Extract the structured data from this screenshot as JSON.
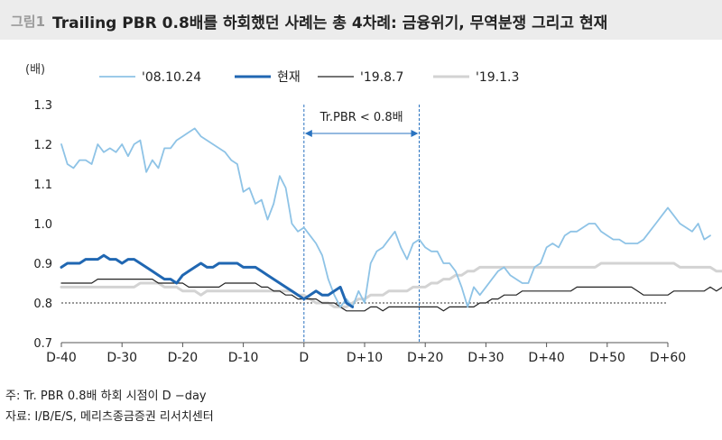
{
  "header": {
    "fig_no": "그림1",
    "title": "Trailing PBR 0.8배를 하회했던 사례는 총 4차례: 금융위기, 무역분쟁 그리고 현재"
  },
  "footer": {
    "note": "주: Tr. PBR 0.8배 하회 시점이 D −day",
    "source": "자료: I/B/E/S, 메리츠종금증권 리서치센터"
  },
  "chart_data": {
    "type": "line",
    "ylabel": "(배)",
    "xlabel": "",
    "xlim": [
      -40,
      60
    ],
    "ylim": [
      0.7,
      1.3
    ],
    "x_ticks": [
      -40,
      -30,
      -20,
      -10,
      0,
      10,
      20,
      30,
      40,
      50,
      60
    ],
    "x_tick_labels": [
      "D-40",
      "D-30",
      "D-20",
      "D-10",
      "D",
      "D+10",
      "D+20",
      "D+30",
      "D+40",
      "D+50",
      "D+60"
    ],
    "y_ticks": [
      0.7,
      0.8,
      0.9,
      1.0,
      1.1,
      1.2,
      1.3
    ],
    "y_tick_labels": [
      "0.7",
      "0.8",
      "0.9",
      "1.0",
      "1.1",
      "1.2",
      "1.3"
    ],
    "grid": false,
    "legend_position": "top",
    "reference_line": {
      "y": 0.8,
      "style": "dotted"
    },
    "annotation": {
      "text": "Tr.PBR < 0.8배",
      "x_start": 0,
      "x_end": 19
    },
    "series": [
      {
        "name": "'08.10.24",
        "color": "#8ec3e6",
        "width": 1.8,
        "x_start": -40,
        "values": [
          1.2,
          1.15,
          1.14,
          1.16,
          1.16,
          1.15,
          1.2,
          1.18,
          1.19,
          1.18,
          1.2,
          1.17,
          1.2,
          1.21,
          1.13,
          1.16,
          1.14,
          1.19,
          1.19,
          1.21,
          1.22,
          1.23,
          1.24,
          1.22,
          1.21,
          1.2,
          1.19,
          1.18,
          1.16,
          1.15,
          1.08,
          1.09,
          1.05,
          1.06,
          1.01,
          1.05,
          1.12,
          1.09,
          1.0,
          0.98,
          0.99,
          0.97,
          0.95,
          0.92,
          0.86,
          0.82,
          0.79,
          0.81,
          0.79,
          0.83,
          0.8,
          0.9,
          0.93,
          0.94,
          0.96,
          0.98,
          0.94,
          0.91,
          0.95,
          0.96,
          0.94,
          0.93,
          0.93,
          0.9,
          0.9,
          0.88,
          0.84,
          0.79,
          0.84,
          0.82,
          0.84,
          0.86,
          0.88,
          0.89,
          0.87,
          0.86,
          0.85,
          0.85,
          0.89,
          0.9,
          0.94,
          0.95,
          0.94,
          0.97,
          0.98,
          0.98,
          0.99,
          1.0,
          1.0,
          0.98,
          0.97,
          0.96,
          0.96,
          0.95,
          0.95,
          0.95,
          0.96,
          0.98,
          1.0,
          1.02,
          1.04,
          1.02,
          1.0,
          0.99,
          0.98,
          1.0,
          0.96,
          0.97
        ]
      },
      {
        "name": "현재",
        "color": "#2067b2",
        "width": 3,
        "x_start": -40,
        "values": [
          0.89,
          0.9,
          0.9,
          0.9,
          0.91,
          0.91,
          0.91,
          0.92,
          0.91,
          0.91,
          0.9,
          0.91,
          0.91,
          0.9,
          0.89,
          0.88,
          0.87,
          0.86,
          0.86,
          0.85,
          0.87,
          0.88,
          0.89,
          0.9,
          0.89,
          0.89,
          0.9,
          0.9,
          0.9,
          0.9,
          0.89,
          0.89,
          0.89,
          0.88,
          0.87,
          0.86,
          0.85,
          0.84,
          0.83,
          0.82,
          0.81,
          0.82,
          0.83,
          0.82,
          0.82,
          0.83,
          0.84,
          0.8,
          0.79
        ]
      },
      {
        "name": "'19.8.7",
        "color": "#222222",
        "width": 1.2,
        "x_start": -40,
        "values": [
          0.85,
          0.85,
          0.85,
          0.85,
          0.85,
          0.85,
          0.86,
          0.86,
          0.86,
          0.86,
          0.86,
          0.86,
          0.86,
          0.86,
          0.86,
          0.86,
          0.85,
          0.85,
          0.85,
          0.85,
          0.85,
          0.84,
          0.84,
          0.84,
          0.84,
          0.84,
          0.84,
          0.85,
          0.85,
          0.85,
          0.85,
          0.85,
          0.85,
          0.84,
          0.84,
          0.83,
          0.83,
          0.82,
          0.82,
          0.81,
          0.81,
          0.81,
          0.81,
          0.8,
          0.8,
          0.8,
          0.79,
          0.78,
          0.78,
          0.78,
          0.78,
          0.79,
          0.79,
          0.78,
          0.79,
          0.79,
          0.79,
          0.79,
          0.79,
          0.79,
          0.79,
          0.79,
          0.79,
          0.78,
          0.79,
          0.79,
          0.79,
          0.79,
          0.79,
          0.8,
          0.8,
          0.81,
          0.81,
          0.82,
          0.82,
          0.82,
          0.83,
          0.83,
          0.83,
          0.83,
          0.83,
          0.83,
          0.83,
          0.83,
          0.83,
          0.84,
          0.84,
          0.84,
          0.84,
          0.84,
          0.84,
          0.84,
          0.84,
          0.84,
          0.84,
          0.83,
          0.82,
          0.82,
          0.82,
          0.82,
          0.82,
          0.83,
          0.83,
          0.83,
          0.83,
          0.83,
          0.83,
          0.84,
          0.83,
          0.84,
          0.84,
          0.84,
          0.84,
          0.84,
          0.84,
          0.84,
          0.84,
          0.84,
          0.84,
          0.84,
          0.84
        ]
      },
      {
        "name": "'19.1.3",
        "color": "#d3d3d3",
        "width": 3,
        "x_start": -40,
        "values": [
          0.84,
          0.84,
          0.84,
          0.84,
          0.84,
          0.84,
          0.84,
          0.84,
          0.84,
          0.84,
          0.84,
          0.84,
          0.84,
          0.85,
          0.85,
          0.85,
          0.85,
          0.84,
          0.84,
          0.84,
          0.83,
          0.83,
          0.83,
          0.82,
          0.83,
          0.83,
          0.83,
          0.83,
          0.83,
          0.83,
          0.83,
          0.83,
          0.83,
          0.83,
          0.83,
          0.83,
          0.83,
          0.83,
          0.83,
          0.82,
          0.82,
          0.81,
          0.8,
          0.8,
          0.8,
          0.79,
          0.79,
          0.79,
          0.8,
          0.81,
          0.81,
          0.82,
          0.82,
          0.82,
          0.83,
          0.83,
          0.83,
          0.83,
          0.84,
          0.84,
          0.84,
          0.85,
          0.85,
          0.86,
          0.86,
          0.87,
          0.87,
          0.88,
          0.88,
          0.89,
          0.89,
          0.89,
          0.89,
          0.89,
          0.89,
          0.89,
          0.89,
          0.89,
          0.89,
          0.89,
          0.89,
          0.89,
          0.89,
          0.89,
          0.89,
          0.89,
          0.89,
          0.89,
          0.89,
          0.9,
          0.9,
          0.9,
          0.9,
          0.9,
          0.9,
          0.9,
          0.9,
          0.9,
          0.9,
          0.9,
          0.9,
          0.9,
          0.89,
          0.89,
          0.89,
          0.89,
          0.89,
          0.89,
          0.88,
          0.88,
          0.88,
          0.88,
          0.88,
          0.88,
          0.87,
          0.87,
          0.87,
          0.86,
          0.86,
          0.86,
          0.86,
          0.86,
          0.86,
          0.86,
          0.86,
          0.86,
          0.86,
          0.87,
          0.87,
          0.87,
          0.87,
          0.88,
          0.88,
          0.88,
          0.88,
          0.88,
          0.88,
          0.88,
          0.88,
          0.87,
          0.87,
          0.87,
          0.87,
          0.87,
          0.87,
          0.87,
          0.87,
          0.87
        ]
      }
    ]
  }
}
